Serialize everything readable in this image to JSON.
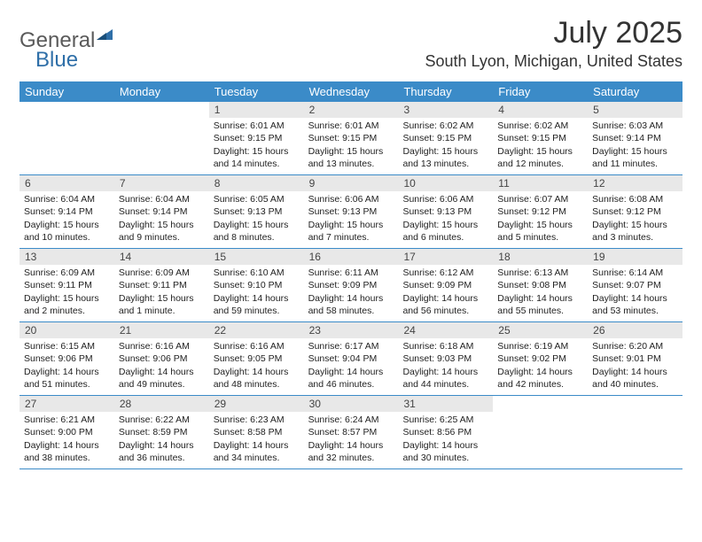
{
  "logo": {
    "line1": "General",
    "line2": "Blue"
  },
  "header": {
    "month_title": "July 2025",
    "location": "South Lyon, Michigan, United States"
  },
  "colors": {
    "header_bg": "#3b8bc8",
    "header_text": "#ffffff",
    "daynum_bg": "#e8e8e8",
    "border": "#3b8bc8",
    "text": "#222222"
  },
  "weekdays": [
    "Sunday",
    "Monday",
    "Tuesday",
    "Wednesday",
    "Thursday",
    "Friday",
    "Saturday"
  ],
  "weeks": [
    [
      {
        "empty": true
      },
      {
        "empty": true
      },
      {
        "num": "1",
        "sunrise": "Sunrise: 6:01 AM",
        "sunset": "Sunset: 9:15 PM",
        "day1": "Daylight: 15 hours",
        "day2": "and 14 minutes."
      },
      {
        "num": "2",
        "sunrise": "Sunrise: 6:01 AM",
        "sunset": "Sunset: 9:15 PM",
        "day1": "Daylight: 15 hours",
        "day2": "and 13 minutes."
      },
      {
        "num": "3",
        "sunrise": "Sunrise: 6:02 AM",
        "sunset": "Sunset: 9:15 PM",
        "day1": "Daylight: 15 hours",
        "day2": "and 13 minutes."
      },
      {
        "num": "4",
        "sunrise": "Sunrise: 6:02 AM",
        "sunset": "Sunset: 9:15 PM",
        "day1": "Daylight: 15 hours",
        "day2": "and 12 minutes."
      },
      {
        "num": "5",
        "sunrise": "Sunrise: 6:03 AM",
        "sunset": "Sunset: 9:14 PM",
        "day1": "Daylight: 15 hours",
        "day2": "and 11 minutes."
      }
    ],
    [
      {
        "num": "6",
        "sunrise": "Sunrise: 6:04 AM",
        "sunset": "Sunset: 9:14 PM",
        "day1": "Daylight: 15 hours",
        "day2": "and 10 minutes."
      },
      {
        "num": "7",
        "sunrise": "Sunrise: 6:04 AM",
        "sunset": "Sunset: 9:14 PM",
        "day1": "Daylight: 15 hours",
        "day2": "and 9 minutes."
      },
      {
        "num": "8",
        "sunrise": "Sunrise: 6:05 AM",
        "sunset": "Sunset: 9:13 PM",
        "day1": "Daylight: 15 hours",
        "day2": "and 8 minutes."
      },
      {
        "num": "9",
        "sunrise": "Sunrise: 6:06 AM",
        "sunset": "Sunset: 9:13 PM",
        "day1": "Daylight: 15 hours",
        "day2": "and 7 minutes."
      },
      {
        "num": "10",
        "sunrise": "Sunrise: 6:06 AM",
        "sunset": "Sunset: 9:13 PM",
        "day1": "Daylight: 15 hours",
        "day2": "and 6 minutes."
      },
      {
        "num": "11",
        "sunrise": "Sunrise: 6:07 AM",
        "sunset": "Sunset: 9:12 PM",
        "day1": "Daylight: 15 hours",
        "day2": "and 5 minutes."
      },
      {
        "num": "12",
        "sunrise": "Sunrise: 6:08 AM",
        "sunset": "Sunset: 9:12 PM",
        "day1": "Daylight: 15 hours",
        "day2": "and 3 minutes."
      }
    ],
    [
      {
        "num": "13",
        "sunrise": "Sunrise: 6:09 AM",
        "sunset": "Sunset: 9:11 PM",
        "day1": "Daylight: 15 hours",
        "day2": "and 2 minutes."
      },
      {
        "num": "14",
        "sunrise": "Sunrise: 6:09 AM",
        "sunset": "Sunset: 9:11 PM",
        "day1": "Daylight: 15 hours",
        "day2": "and 1 minute."
      },
      {
        "num": "15",
        "sunrise": "Sunrise: 6:10 AM",
        "sunset": "Sunset: 9:10 PM",
        "day1": "Daylight: 14 hours",
        "day2": "and 59 minutes."
      },
      {
        "num": "16",
        "sunrise": "Sunrise: 6:11 AM",
        "sunset": "Sunset: 9:09 PM",
        "day1": "Daylight: 14 hours",
        "day2": "and 58 minutes."
      },
      {
        "num": "17",
        "sunrise": "Sunrise: 6:12 AM",
        "sunset": "Sunset: 9:09 PM",
        "day1": "Daylight: 14 hours",
        "day2": "and 56 minutes."
      },
      {
        "num": "18",
        "sunrise": "Sunrise: 6:13 AM",
        "sunset": "Sunset: 9:08 PM",
        "day1": "Daylight: 14 hours",
        "day2": "and 55 minutes."
      },
      {
        "num": "19",
        "sunrise": "Sunrise: 6:14 AM",
        "sunset": "Sunset: 9:07 PM",
        "day1": "Daylight: 14 hours",
        "day2": "and 53 minutes."
      }
    ],
    [
      {
        "num": "20",
        "sunrise": "Sunrise: 6:15 AM",
        "sunset": "Sunset: 9:06 PM",
        "day1": "Daylight: 14 hours",
        "day2": "and 51 minutes."
      },
      {
        "num": "21",
        "sunrise": "Sunrise: 6:16 AM",
        "sunset": "Sunset: 9:06 PM",
        "day1": "Daylight: 14 hours",
        "day2": "and 49 minutes."
      },
      {
        "num": "22",
        "sunrise": "Sunrise: 6:16 AM",
        "sunset": "Sunset: 9:05 PM",
        "day1": "Daylight: 14 hours",
        "day2": "and 48 minutes."
      },
      {
        "num": "23",
        "sunrise": "Sunrise: 6:17 AM",
        "sunset": "Sunset: 9:04 PM",
        "day1": "Daylight: 14 hours",
        "day2": "and 46 minutes."
      },
      {
        "num": "24",
        "sunrise": "Sunrise: 6:18 AM",
        "sunset": "Sunset: 9:03 PM",
        "day1": "Daylight: 14 hours",
        "day2": "and 44 minutes."
      },
      {
        "num": "25",
        "sunrise": "Sunrise: 6:19 AM",
        "sunset": "Sunset: 9:02 PM",
        "day1": "Daylight: 14 hours",
        "day2": "and 42 minutes."
      },
      {
        "num": "26",
        "sunrise": "Sunrise: 6:20 AM",
        "sunset": "Sunset: 9:01 PM",
        "day1": "Daylight: 14 hours",
        "day2": "and 40 minutes."
      }
    ],
    [
      {
        "num": "27",
        "sunrise": "Sunrise: 6:21 AM",
        "sunset": "Sunset: 9:00 PM",
        "day1": "Daylight: 14 hours",
        "day2": "and 38 minutes."
      },
      {
        "num": "28",
        "sunrise": "Sunrise: 6:22 AM",
        "sunset": "Sunset: 8:59 PM",
        "day1": "Daylight: 14 hours",
        "day2": "and 36 minutes."
      },
      {
        "num": "29",
        "sunrise": "Sunrise: 6:23 AM",
        "sunset": "Sunset: 8:58 PM",
        "day1": "Daylight: 14 hours",
        "day2": "and 34 minutes."
      },
      {
        "num": "30",
        "sunrise": "Sunrise: 6:24 AM",
        "sunset": "Sunset: 8:57 PM",
        "day1": "Daylight: 14 hours",
        "day2": "and 32 minutes."
      },
      {
        "num": "31",
        "sunrise": "Sunrise: 6:25 AM",
        "sunset": "Sunset: 8:56 PM",
        "day1": "Daylight: 14 hours",
        "day2": "and 30 minutes."
      },
      {
        "empty": true
      },
      {
        "empty": true
      }
    ]
  ]
}
